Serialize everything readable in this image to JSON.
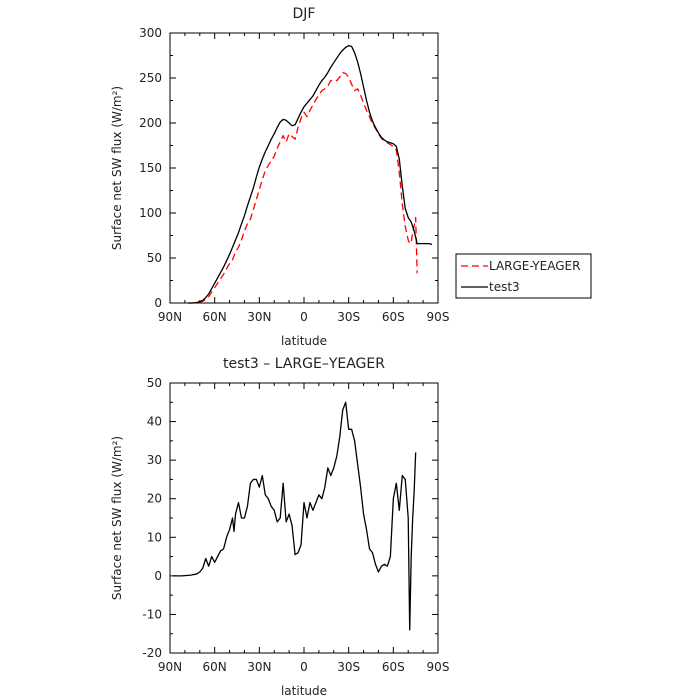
{
  "chart_data": [
    {
      "type": "line",
      "title": "DJF",
      "xlabel": "latitude",
      "ylabel": "Surface net SW flux (W/m²)",
      "x_ticks": [
        "90N",
        "60N",
        "30N",
        "0",
        "30S",
        "60S",
        "90S"
      ],
      "x_tick_values": [
        90,
        60,
        30,
        0,
        -30,
        -60,
        -90
      ],
      "xlim": [
        90,
        -90
      ],
      "ylim": [
        0,
        300
      ],
      "y_ticks": [
        0,
        50,
        100,
        150,
        200,
        250,
        300
      ],
      "legend_position": "outside-right",
      "grid": false,
      "series": [
        {
          "name": "LARGE-YEAGER",
          "color": "#ff0000",
          "dash": "dashed",
          "points": [
            [
              78,
              0
            ],
            [
              75,
              0
            ],
            [
              72,
              0.5
            ],
            [
              70,
              1
            ],
            [
              68,
              2
            ],
            [
              66,
              4
            ],
            [
              64,
              7
            ],
            [
              62,
              12
            ],
            [
              60,
              17
            ],
            [
              58,
              22
            ],
            [
              56,
              27
            ],
            [
              54,
              32
            ],
            [
              52,
              38
            ],
            [
              50,
              44
            ],
            [
              48,
              48
            ],
            [
              46,
              57
            ],
            [
              44,
              62
            ],
            [
              42,
              70
            ],
            [
              40,
              80
            ],
            [
              38,
              88
            ],
            [
              36,
              93
            ],
            [
              34,
              104
            ],
            [
              32,
              115
            ],
            [
              30,
              126
            ],
            [
              28,
              137
            ],
            [
              26,
              147
            ],
            [
              24,
              153
            ],
            [
              22,
              158
            ],
            [
              20,
              163
            ],
            [
              18,
              172
            ],
            [
              16,
              179
            ],
            [
              14,
              186
            ],
            [
              12,
              179
            ],
            [
              10,
              188
            ],
            [
              8,
              185
            ],
            [
              6,
              182
            ],
            [
              4,
              195
            ],
            [
              2,
              205
            ],
            [
              0,
              212
            ],
            [
              -2,
              207
            ],
            [
              -4,
              214
            ],
            [
              -6,
              220
            ],
            [
              -8,
              226
            ],
            [
              -10,
              231
            ],
            [
              -12,
              236
            ],
            [
              -14,
              238
            ],
            [
              -16,
              241
            ],
            [
              -18,
              247
            ],
            [
              -20,
              248
            ],
            [
              -22,
              247
            ],
            [
              -24,
              251
            ],
            [
              -26,
              256
            ],
            [
              -28,
              255
            ],
            [
              -30,
              251
            ],
            [
              -32,
              243
            ],
            [
              -34,
              236
            ],
            [
              -36,
              238
            ],
            [
              -38,
              231
            ],
            [
              -40,
              222
            ],
            [
              -42,
              214
            ],
            [
              -44,
              207
            ],
            [
              -46,
              199
            ],
            [
              -48,
              194
            ],
            [
              -50,
              188
            ],
            [
              -52,
              183
            ],
            [
              -54,
              180
            ],
            [
              -56,
              178
            ],
            [
              -58,
              176
            ],
            [
              -60,
              174
            ],
            [
              -62,
              170
            ],
            [
              -64,
              145
            ],
            [
              -66,
              110
            ],
            [
              -68,
              85
            ],
            [
              -70,
              70
            ],
            [
              -71,
              66
            ],
            [
              -72,
              68
            ],
            [
              -73,
              78
            ],
            [
              -74,
              86
            ],
            [
              -75,
              95
            ],
            [
              -76,
              33
            ]
          ]
        },
        {
          "name": "test3",
          "color": "#000000",
          "dash": "solid",
          "points": [
            [
              78,
              0
            ],
            [
              75,
              0
            ],
            [
              72,
              0.5
            ],
            [
              70,
              1.5
            ],
            [
              68,
              3
            ],
            [
              66,
              6
            ],
            [
              64,
              10
            ],
            [
              62,
              16
            ],
            [
              60,
              22
            ],
            [
              58,
              28
            ],
            [
              56,
              34
            ],
            [
              54,
              40
            ],
            [
              52,
              47
            ],
            [
              50,
              54
            ],
            [
              48,
              62
            ],
            [
              46,
              70
            ],
            [
              44,
              78
            ],
            [
              42,
              88
            ],
            [
              40,
              97
            ],
            [
              38,
              108
            ],
            [
              36,
              118
            ],
            [
              34,
              128
            ],
            [
              32,
              140
            ],
            [
              30,
              151
            ],
            [
              28,
              160
            ],
            [
              26,
              168
            ],
            [
              24,
              175
            ],
            [
              22,
              182
            ],
            [
              20,
              188
            ],
            [
              18,
              195
            ],
            [
              16,
              201
            ],
            [
              14,
              204
            ],
            [
              12,
              203
            ],
            [
              10,
              200
            ],
            [
              8,
              197
            ],
            [
              6,
              198
            ],
            [
              4,
              205
            ],
            [
              2,
              212
            ],
            [
              0,
              218
            ],
            [
              -2,
              222
            ],
            [
              -4,
              226
            ],
            [
              -6,
              230
            ],
            [
              -8,
              236
            ],
            [
              -10,
              242
            ],
            [
              -12,
              247
            ],
            [
              -14,
              251
            ],
            [
              -16,
              256
            ],
            [
              -18,
              262
            ],
            [
              -20,
              267
            ],
            [
              -22,
              272
            ],
            [
              -24,
              277
            ],
            [
              -26,
              281
            ],
            [
              -28,
              284
            ],
            [
              -30,
              286
            ],
            [
              -32,
              285
            ],
            [
              -34,
              278
            ],
            [
              -36,
              268
            ],
            [
              -38,
              255
            ],
            [
              -40,
              240
            ],
            [
              -42,
              225
            ],
            [
              -44,
              212
            ],
            [
              -46,
              202
            ],
            [
              -48,
              195
            ],
            [
              -50,
              189
            ],
            [
              -52,
              184
            ],
            [
              -54,
              181
            ],
            [
              -56,
              179
            ],
            [
              -58,
              178
            ],
            [
              -60,
              177
            ],
            [
              -62,
              174
            ],
            [
              -64,
              160
            ],
            [
              -66,
              130
            ],
            [
              -68,
              105
            ],
            [
              -70,
              95
            ],
            [
              -72,
              90
            ],
            [
              -74,
              80
            ],
            [
              -76,
              66
            ],
            [
              -80,
              66
            ],
            [
              -84,
              66
            ],
            [
              -86,
              65
            ]
          ]
        }
      ]
    },
    {
      "type": "line",
      "title": "test3 – LARGE–YEAGER",
      "xlabel": "latitude",
      "ylabel": "Surface net SW flux (W/m²)",
      "x_ticks": [
        "90N",
        "60N",
        "30N",
        "0",
        "30S",
        "60S",
        "90S"
      ],
      "x_tick_values": [
        90,
        60,
        30,
        0,
        -30,
        -60,
        -90
      ],
      "xlim": [
        90,
        -90
      ],
      "ylim": [
        -20,
        50
      ],
      "y_ticks": [
        -20,
        -10,
        0,
        10,
        20,
        30,
        40,
        50
      ],
      "grid": false,
      "series": [
        {
          "color": "#000000",
          "dash": "solid",
          "points": [
            [
              88,
              0
            ],
            [
              82,
              0
            ],
            [
              76,
              0.2
            ],
            [
              72,
              0.5
            ],
            [
              70,
              1
            ],
            [
              68,
              2
            ],
            [
              66,
              4.5
            ],
            [
              64,
              2.5
            ],
            [
              62,
              5
            ],
            [
              60,
              3.5
            ],
            [
              58,
              5
            ],
            [
              56,
              6.5
            ],
            [
              54,
              7
            ],
            [
              52,
              10
            ],
            [
              50,
              12
            ],
            [
              48,
              15
            ],
            [
              47,
              11.5
            ],
            [
              46,
              16
            ],
            [
              44,
              19
            ],
            [
              42,
              15
            ],
            [
              40,
              15
            ],
            [
              38,
              18
            ],
            [
              36,
              24
            ],
            [
              34,
              25
            ],
            [
              32,
              25
            ],
            [
              30,
              23
            ],
            [
              28,
              26
            ],
            [
              26,
              21
            ],
            [
              24,
              20
            ],
            [
              22,
              18
            ],
            [
              20,
              17
            ],
            [
              18,
              14
            ],
            [
              16,
              15
            ],
            [
              14,
              24
            ],
            [
              12,
              14
            ],
            [
              10,
              16
            ],
            [
              8,
              13
            ],
            [
              6,
              5.5
            ],
            [
              4,
              6
            ],
            [
              2,
              8
            ],
            [
              0,
              19
            ],
            [
              -2,
              15
            ],
            [
              -4,
              19
            ],
            [
              -6,
              17
            ],
            [
              -8,
              19
            ],
            [
              -10,
              21
            ],
            [
              -12,
              20
            ],
            [
              -14,
              23
            ],
            [
              -16,
              28
            ],
            [
              -18,
              26
            ],
            [
              -20,
              28
            ],
            [
              -22,
              31
            ],
            [
              -24,
              36
            ],
            [
              -26,
              43
            ],
            [
              -28,
              45
            ],
            [
              -30,
              38
            ],
            [
              -32,
              38
            ],
            [
              -34,
              35
            ],
            [
              -36,
              29
            ],
            [
              -38,
              23
            ],
            [
              -40,
              16
            ],
            [
              -42,
              12
            ],
            [
              -44,
              7
            ],
            [
              -46,
              6
            ],
            [
              -48,
              3
            ],
            [
              -50,
              1
            ],
            [
              -52,
              2.5
            ],
            [
              -54,
              3
            ],
            [
              -56,
              2.5
            ],
            [
              -58,
              5
            ],
            [
              -60,
              20
            ],
            [
              -62,
              24
            ],
            [
              -64,
              17
            ],
            [
              -66,
              26
            ],
            [
              -68,
              25
            ],
            [
              -70,
              15
            ],
            [
              -71,
              -14
            ],
            [
              -72,
              5
            ],
            [
              -73,
              15
            ],
            [
              -74,
              22
            ],
            [
              -75,
              32
            ]
          ]
        }
      ]
    }
  ]
}
